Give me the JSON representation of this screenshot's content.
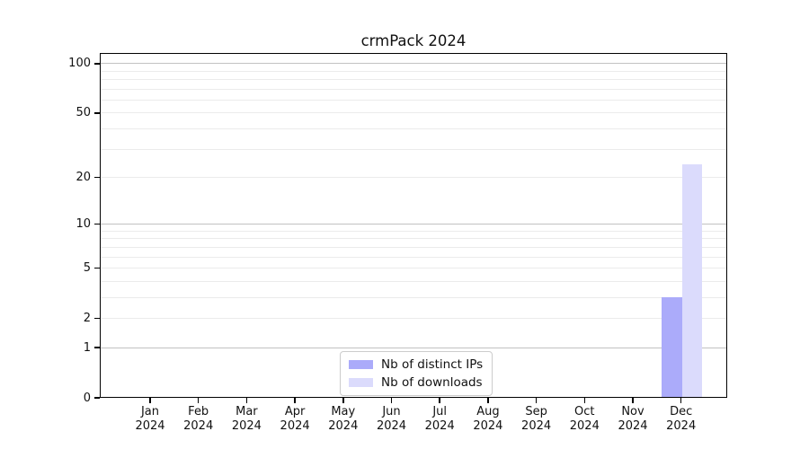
{
  "chart_data": {
    "type": "bar",
    "title": "crmPack 2024",
    "categories": [
      "Jan",
      "Feb",
      "Mar",
      "Apr",
      "May",
      "Jun",
      "Jul",
      "Aug",
      "Sep",
      "Oct",
      "Nov",
      "Dec"
    ],
    "x_tick_year": "2024",
    "series": [
      {
        "name": "Nb of distinct IPs",
        "color": "#ababfa",
        "values": [
          0,
          0,
          0,
          0,
          0,
          0,
          0,
          0,
          0,
          0,
          0,
          3
        ]
      },
      {
        "name": "Nb of downloads",
        "color": "#dbdbfc",
        "values": [
          0,
          0,
          0,
          0,
          0,
          0,
          0,
          0,
          0,
          0,
          0,
          24
        ]
      }
    ],
    "xlabel": "",
    "ylabel": "",
    "yscale": "log1p",
    "ylim": [
      0,
      116
    ],
    "yticks": [
      0,
      1,
      2,
      5,
      10,
      20,
      50,
      100
    ],
    "major_gridlines": [
      1,
      10,
      100
    ],
    "minor_gridlines": [
      2,
      3,
      4,
      5,
      6,
      7,
      8,
      9,
      20,
      30,
      40,
      50,
      60,
      70,
      80,
      90
    ],
    "grid": "horizontal",
    "legend_position": "lower center"
  },
  "colors": {
    "major_grid": "#c2c2c2",
    "minor_grid": "#ebebeb",
    "spine": "#000000",
    "legend_border": "#cccccc",
    "text": "#111111"
  }
}
